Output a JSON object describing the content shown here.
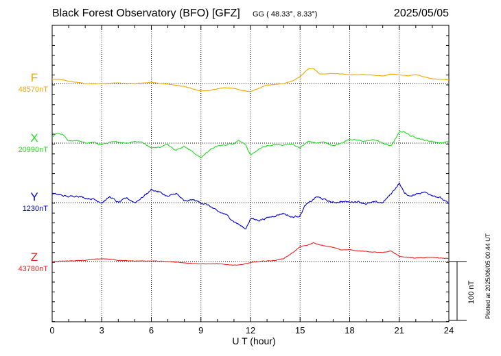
{
  "header": {
    "title": "Black Forest Observatory (BFO)  [GFZ]",
    "coords": "GG ( 48.33°,   8.33°)",
    "date": "2025/05/05"
  },
  "footer": {
    "plotted": "Plotted at 2025/06/05 00:44 UT",
    "scale_label": "100 nT"
  },
  "chart_data": {
    "type": "line",
    "xlabel": "U T (hour)",
    "xlim": [
      0,
      24
    ],
    "xticks": [
      0,
      3,
      6,
      9,
      12,
      15,
      18,
      21,
      24
    ],
    "scale_bar_nT": 100,
    "grid": true,
    "series": [
      {
        "name": "F",
        "baseline_label": "48570nT",
        "baseline": 48570,
        "color": "#f0a800",
        "x": [
          0,
          0.5,
          1,
          1.5,
          2,
          3,
          4,
          5,
          6,
          7,
          8,
          8.5,
          9,
          9.5,
          10,
          10.5,
          11,
          11.5,
          12,
          12.5,
          13,
          14,
          14.5,
          15,
          15.5,
          15.8,
          16.2,
          17,
          18,
          19,
          20,
          20.5,
          21,
          21.5,
          22,
          23,
          24
        ],
        "y": [
          48577,
          48577,
          48574,
          48572,
          48570,
          48570,
          48571,
          48570,
          48572,
          48569,
          48565,
          48561,
          48557,
          48558,
          48561,
          48563,
          48562,
          48558,
          48556,
          48562,
          48567,
          48570,
          48574,
          48582,
          48595,
          48596,
          48586,
          48587,
          48585,
          48585,
          48583,
          48586,
          48585,
          48583,
          48585,
          48578,
          48576
        ]
      },
      {
        "name": "X",
        "baseline_label": "20990nT",
        "baseline": 20990,
        "color": "#22dd22",
        "x": [
          0,
          0.3,
          0.7,
          1,
          1.5,
          2,
          2.5,
          3,
          3.5,
          4,
          4.5,
          5,
          5.5,
          6,
          6.5,
          7,
          7.5,
          8,
          8.5,
          9,
          9.5,
          10,
          10.5,
          11,
          11.3,
          11.7,
          12,
          12.5,
          13,
          13.5,
          14,
          14.5,
          15,
          15.5,
          16,
          16.5,
          17,
          17.5,
          18,
          18.5,
          19,
          19.5,
          20,
          20.5,
          21,
          21.3,
          21.7,
          22,
          22.5,
          23,
          23.5,
          24
        ],
        "y": [
          21000,
          21007,
          21003,
          20993,
          20995,
          20990,
          20991,
          20988,
          20991,
          20992,
          20990,
          20993,
          20991,
          20982,
          20983,
          20988,
          20978,
          20985,
          20975,
          20965,
          20978,
          20985,
          20987,
          20990,
          20995,
          20988,
          20968,
          20980,
          20985,
          20987,
          20987,
          20988,
          20982,
          20993,
          20990,
          20992,
          20985,
          20990,
          20997,
          20995,
          20993,
          20996,
          20990,
          20985,
          21008,
          21010,
          21002,
          21000,
          20995,
          20993,
          20990,
          20993
        ]
      },
      {
        "name": "Y",
        "baseline_label": "1230nT",
        "baseline": 1230,
        "color": "#0000dd",
        "x": [
          0,
          0.5,
          1,
          1.5,
          2,
          2.5,
          3,
          3.5,
          4,
          4.5,
          5,
          5.5,
          6,
          6.5,
          7,
          7.5,
          8,
          8.5,
          9,
          9.5,
          10,
          10.5,
          11,
          11.3,
          11.7,
          12,
          12.5,
          13,
          13.5,
          14,
          14.5,
          15,
          15.3,
          15.7,
          16,
          16.5,
          17,
          17.5,
          18,
          18.5,
          19,
          19.5,
          20,
          20.5,
          21,
          21.3,
          21.7,
          22,
          22.5,
          23,
          23.5,
          24
        ],
        "y": [
          1245,
          1243,
          1240,
          1242,
          1238,
          1236,
          1230,
          1240,
          1230,
          1238,
          1230,
          1240,
          1252,
          1248,
          1240,
          1246,
          1232,
          1235,
          1230,
          1225,
          1215,
          1210,
          1198,
          1193,
          1185,
          1203,
          1200,
          1204,
          1208,
          1212,
          1205,
          1208,
          1225,
          1233,
          1240,
          1235,
          1230,
          1232,
          1231,
          1232,
          1228,
          1231,
          1230,
          1245,
          1263,
          1247,
          1240,
          1245,
          1248,
          1243,
          1238,
          1228
        ]
      },
      {
        "name": "Z",
        "baseline_label": "43780nT",
        "baseline": 43780,
        "color": "#ee2020",
        "x": [
          0,
          1,
          2,
          3,
          3.5,
          4,
          5,
          6,
          7,
          8,
          9,
          10,
          10.5,
          11,
          11.5,
          12,
          12.5,
          13,
          13.5,
          14,
          14.5,
          15,
          15.5,
          15.8,
          16.2,
          17,
          17.5,
          18,
          19,
          20,
          20.5,
          21,
          21.5,
          22,
          23,
          24
        ],
        "y": [
          43780,
          43781,
          43782,
          43785,
          43784,
          43782,
          43781,
          43781,
          43780,
          43778,
          43776,
          43776,
          43775,
          43774,
          43775,
          43778,
          43780,
          43781,
          43782,
          43785,
          43794,
          43805,
          43808,
          43812,
          43808,
          43804,
          43800,
          43800,
          43797,
          43795,
          43798,
          43789,
          43787,
          43786,
          43787,
          43785
        ]
      }
    ]
  }
}
